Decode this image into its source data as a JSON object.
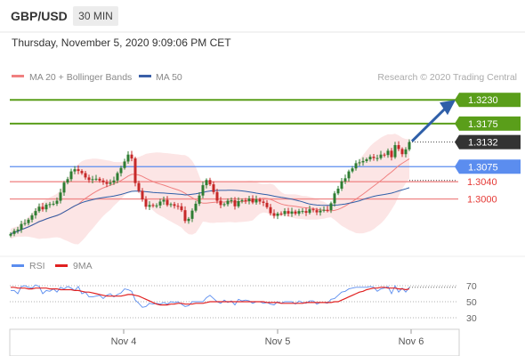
{
  "header": {
    "symbol": "GBP/USD",
    "interval": "30 MIN"
  },
  "timestamp": "Thursday, November 5, 2020 9:09:06 PM CET",
  "legend": {
    "bollinger": {
      "label": "MA 20 + Bollinger Bands",
      "color": "#f08080"
    },
    "ma50": {
      "label": "MA 50",
      "color": "#3a5fa8"
    }
  },
  "credit": "Research © 2020 Trading Central",
  "colors": {
    "up": "#2e7d32",
    "down": "#c62828",
    "resistance": "#5a9e1a",
    "pivot": "#5b8def",
    "support": "#f08a8a",
    "arrow": "#2f5fa8",
    "band_fill": "#fbe0e0"
  },
  "levels": [
    {
      "value": 1.323,
      "label": "1.3230",
      "kind": "resistance"
    },
    {
      "value": 1.3175,
      "label": "1.3175",
      "kind": "resistance"
    },
    {
      "value": 1.3132,
      "label": "1.3132",
      "kind": "last"
    },
    {
      "value": 1.3075,
      "label": "1.3075",
      "kind": "pivot"
    },
    {
      "value": 1.304,
      "label": "1.3040",
      "kind": "support"
    },
    {
      "value": 1.3,
      "label": "1.3000",
      "kind": "support"
    }
  ],
  "x_ticks": [
    "Nov 4",
    "Nov 5",
    "Nov 6"
  ],
  "rsi_legend": {
    "rsi": {
      "label": "RSI",
      "color": "#5b8def"
    },
    "ma": {
      "label": "9MA",
      "color": "#e02020"
    }
  },
  "rsi_ticks": [
    "70",
    "50",
    "30"
  ],
  "chart_data": [
    {
      "type": "candlestick",
      "title": "GBP/USD",
      "ylim": [
        1.29,
        1.328
      ],
      "close": [
        1.2919,
        1.2926,
        1.2929,
        1.2942,
        1.2944,
        1.2952,
        1.2962,
        1.2972,
        1.2982,
        1.2976,
        1.2987,
        1.2988,
        1.2989,
        1.2996,
        1.3015,
        1.3038,
        1.3046,
        1.3064,
        1.3069,
        1.3065,
        1.306,
        1.305,
        1.3044,
        1.3046,
        1.3047,
        1.3043,
        1.3039,
        1.3035,
        1.3038,
        1.3043,
        1.306,
        1.3072,
        1.3087,
        1.3103,
        1.3094,
        1.3037,
        1.3019,
        1.2999,
        1.2982,
        1.2986,
        1.2984,
        1.2985,
        1.2994,
        1.2998,
        1.2986,
        1.2988,
        1.2984,
        1.2983,
        1.2974,
        1.2949,
        1.2954,
        1.2973,
        1.2989,
        1.3008,
        1.3032,
        1.3044,
        1.3034,
        1.3016,
        1.2996,
        1.2986,
        1.2988,
        1.2996,
        1.2997,
        1.2983,
        1.2995,
        1.2997,
        1.2995,
        1.3001,
        1.2992,
        1.2999,
        1.2994,
        1.2991,
        1.2981,
        1.2967,
        1.2961,
        1.2966,
        1.2965,
        1.2972,
        1.2966,
        1.2971,
        1.2966,
        1.2972,
        1.2972,
        1.2968,
        1.2976,
        1.2974,
        1.2969,
        1.2973,
        1.2975,
        1.2974,
        1.299,
        1.3013,
        1.3024,
        1.3041,
        1.3048,
        1.3064,
        1.3071,
        1.3083,
        1.3085,
        1.3088,
        1.3092,
        1.3098,
        1.3095,
        1.3095,
        1.3103,
        1.3102,
        1.3112,
        1.3097,
        1.3125,
        1.3116,
        1.3104,
        1.3115,
        1.3132
      ],
      "ma20_last": 1.3094,
      "ma50_last": 1.3043,
      "levels": [
        1.323,
        1.3175,
        1.3132,
        1.3075,
        1.304,
        1.3
      ]
    },
    {
      "type": "line",
      "title": "RSI",
      "ylim": [
        20,
        80
      ],
      "series": [
        {
          "name": "RSI",
          "values": [
            64,
            64,
            60,
            69,
            70,
            68,
            67,
            71,
            69,
            60,
            64,
            63,
            66,
            62,
            68,
            66,
            69,
            67,
            64,
            69,
            60,
            62,
            56,
            56,
            57,
            58,
            54,
            58,
            60,
            56,
            59,
            61,
            66,
            65,
            63,
            52,
            48,
            43,
            44,
            48,
            47,
            48,
            47,
            49,
            47,
            50,
            49,
            50,
            47,
            44,
            45,
            50,
            50,
            50,
            50,
            55,
            58,
            54,
            50,
            48,
            52,
            49,
            51,
            46,
            53,
            51,
            52,
            51,
            48,
            50,
            50,
            48,
            49,
            47,
            46,
            50,
            48,
            50,
            50,
            50,
            47,
            51,
            49,
            48,
            51,
            51,
            47,
            49,
            49,
            48,
            53,
            54,
            58,
            62,
            63,
            66,
            67,
            68,
            68,
            68,
            68,
            69,
            68,
            63,
            66,
            67,
            69,
            60,
            70,
            62,
            67,
            62,
            68
          ]
        },
        {
          "name": "9MA",
          "values": [
            68,
            68,
            67,
            67,
            67,
            66,
            66,
            67,
            67,
            67,
            67,
            66,
            66,
            66,
            65,
            65,
            65,
            65,
            64,
            64,
            63,
            62,
            62,
            61,
            60,
            59,
            58,
            57,
            57,
            57,
            57,
            57,
            58,
            59,
            59,
            58,
            57,
            55,
            53,
            51,
            49,
            47,
            46,
            46,
            46,
            47,
            47,
            48,
            48,
            47,
            47,
            47,
            48,
            48,
            48,
            49,
            50,
            50,
            50,
            50,
            50,
            50,
            50,
            50,
            50,
            50,
            50,
            50,
            50,
            50,
            50,
            50,
            49,
            49,
            49,
            49,
            48,
            48,
            48,
            48,
            48,
            48,
            48,
            49,
            49,
            49,
            49,
            49,
            49,
            49,
            49,
            50,
            50,
            52,
            54,
            56,
            58,
            60,
            62,
            63,
            65,
            66,
            67,
            67,
            68,
            68,
            67,
            67,
            67,
            66,
            66,
            65,
            66
          ]
        }
      ],
      "levels": [
        70,
        50,
        30
      ]
    }
  ]
}
